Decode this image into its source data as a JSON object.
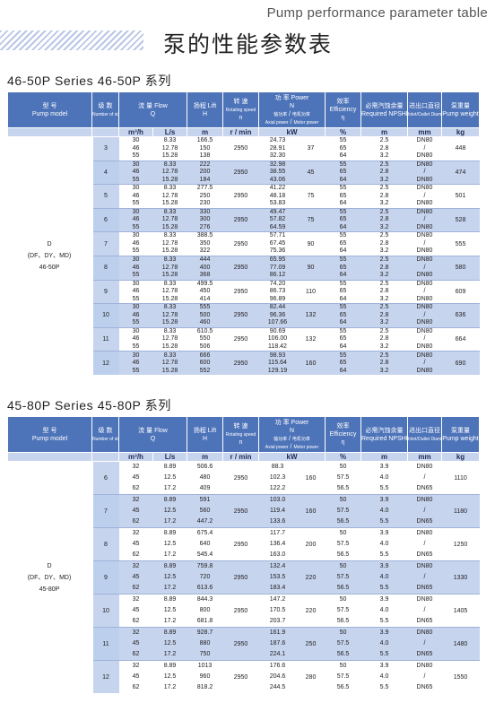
{
  "header": {
    "caption": "Pump performance parameter table",
    "title_cn": "泵的性能参数表"
  },
  "tables": [
    {
      "title": "46-50P Series  46-50P 系列",
      "model_label": [
        "D",
        "(DF、DY、MD)",
        "46-50P"
      ],
      "rows": [
        {
          "stages": "3",
          "q_m3h": [
            "30",
            "46",
            "55"
          ],
          "q_ls": [
            "8.33",
            "12.78",
            "15.28"
          ],
          "h": [
            "166.5",
            "150",
            "138"
          ],
          "speed": "2950",
          "shaft": [
            "24.73",
            "28.91",
            "32.30"
          ],
          "motor": "37",
          "eff": [
            "55",
            "65",
            "64"
          ],
          "npshr": [
            "2.5",
            "2.8",
            "3.2"
          ],
          "dia": [
            "DN80",
            "DN80"
          ],
          "weight": "448"
        },
        {
          "stages": "4",
          "q_m3h": [
            "30",
            "46",
            "55"
          ],
          "q_ls": [
            "8.33",
            "12.78",
            "15.28"
          ],
          "h": [
            "222",
            "200",
            "184"
          ],
          "speed": "2950",
          "shaft": [
            "32.98",
            "38.55",
            "43.06"
          ],
          "motor": "45",
          "eff": [
            "55",
            "65",
            "64"
          ],
          "npshr": [
            "2.5",
            "2.8",
            "3.2"
          ],
          "dia": [
            "DN80",
            "DN80"
          ],
          "weight": "474"
        },
        {
          "stages": "5",
          "q_m3h": [
            "30",
            "46",
            "55"
          ],
          "q_ls": [
            "8.33",
            "12.78",
            "15.28"
          ],
          "h": [
            "277.5",
            "250",
            "230"
          ],
          "speed": "2950",
          "shaft": [
            "41.22",
            "48.18",
            "53.83"
          ],
          "motor": "75",
          "eff": [
            "55",
            "65",
            "64"
          ],
          "npshr": [
            "2.5",
            "2.8",
            "3.2"
          ],
          "dia": [
            "DN80",
            "DN80"
          ],
          "weight": "501"
        },
        {
          "stages": "6",
          "q_m3h": [
            "30",
            "46",
            "55"
          ],
          "q_ls": [
            "8.33",
            "12.78",
            "15.28"
          ],
          "h": [
            "330",
            "300",
            "276"
          ],
          "speed": "2950",
          "shaft": [
            "49.47",
            "57.82",
            "64.59"
          ],
          "motor": "75",
          "eff": [
            "55",
            "65",
            "64"
          ],
          "npshr": [
            "2.5",
            "2.8",
            "3.2"
          ],
          "dia": [
            "DN80",
            "DN80"
          ],
          "weight": "528"
        },
        {
          "stages": "7",
          "q_m3h": [
            "30",
            "46",
            "55"
          ],
          "q_ls": [
            "8.33",
            "12.78",
            "15.28"
          ],
          "h": [
            "388.5",
            "350",
            "322"
          ],
          "speed": "2950",
          "shaft": [
            "57.71",
            "67.45",
            "75.36"
          ],
          "motor": "90",
          "eff": [
            "55",
            "65",
            "64"
          ],
          "npshr": [
            "2.5",
            "2.8",
            "3.2"
          ],
          "dia": [
            "DN80",
            "DN80"
          ],
          "weight": "555"
        },
        {
          "stages": "8",
          "q_m3h": [
            "30",
            "46",
            "55"
          ],
          "q_ls": [
            "8.33",
            "12.78",
            "15.28"
          ],
          "h": [
            "444",
            "400",
            "368"
          ],
          "speed": "2950",
          "shaft": [
            "65.95",
            "77.09",
            "86.12"
          ],
          "motor": "90",
          "eff": [
            "55",
            "65",
            "64"
          ],
          "npshr": [
            "2.5",
            "2.8",
            "3.2"
          ],
          "dia": [
            "DN80",
            "DN80"
          ],
          "weight": "580"
        },
        {
          "stages": "9",
          "q_m3h": [
            "30",
            "46",
            "55"
          ],
          "q_ls": [
            "8.33",
            "12.78",
            "15.28"
          ],
          "h": [
            "499.5",
            "450",
            "414"
          ],
          "speed": "2950",
          "shaft": [
            "74.20",
            "86.73",
            "96.89"
          ],
          "motor": "110",
          "eff": [
            "55",
            "65",
            "64"
          ],
          "npshr": [
            "2.5",
            "2.8",
            "3.2"
          ],
          "dia": [
            "DN80",
            "DN80"
          ],
          "weight": "609"
        },
        {
          "stages": "10",
          "q_m3h": [
            "30",
            "46",
            "55"
          ],
          "q_ls": [
            "8.33",
            "12.78",
            "15.28"
          ],
          "h": [
            "555",
            "500",
            "460"
          ],
          "speed": "2950",
          "shaft": [
            "82.44",
            "96.36",
            "107.66"
          ],
          "motor": "132",
          "eff": [
            "55",
            "65",
            "64"
          ],
          "npshr": [
            "2.5",
            "2.8",
            "3.2"
          ],
          "dia": [
            "DN80",
            "DN80"
          ],
          "weight": "636"
        },
        {
          "stages": "11",
          "q_m3h": [
            "30",
            "46",
            "55"
          ],
          "q_ls": [
            "8.33",
            "12.78",
            "15.28"
          ],
          "h": [
            "610.5",
            "550",
            "506"
          ],
          "speed": "2950",
          "shaft": [
            "90.69",
            "106.00",
            "118.42"
          ],
          "motor": "132",
          "eff": [
            "55",
            "65",
            "64"
          ],
          "npshr": [
            "2.5",
            "2.8",
            "3.2"
          ],
          "dia": [
            "DN80",
            "DN80"
          ],
          "weight": "664"
        },
        {
          "stages": "12",
          "q_m3h": [
            "30",
            "46",
            "55"
          ],
          "q_ls": [
            "8.33",
            "12.78",
            "15.28"
          ],
          "h": [
            "666",
            "600",
            "552"
          ],
          "speed": "2950",
          "shaft": [
            "98.93",
            "115.64",
            "129.19"
          ],
          "motor": "160",
          "eff": [
            "55",
            "65",
            "64"
          ],
          "npshr": [
            "2.5",
            "2.8",
            "3.2"
          ],
          "dia": [
            "DN80",
            "DN80"
          ],
          "weight": "690"
        }
      ]
    },
    {
      "title": "45-80P Series  45-80P 系列",
      "model_label": [
        "D",
        "(DF、DY、MD)",
        "45-80P"
      ],
      "rows": [
        {
          "stages": "6",
          "q_m3h": [
            "32",
            "45",
            "62"
          ],
          "q_ls": [
            "8.89",
            "12.5",
            "17.2"
          ],
          "h": [
            "506.6",
            "480",
            "409"
          ],
          "speed": "2950",
          "shaft": [
            "88.3",
            "102.3",
            "122.2"
          ],
          "motor": "160",
          "eff": [
            "50",
            "57.5",
            "56.5"
          ],
          "npshr": [
            "3.9",
            "4.0",
            "5.5"
          ],
          "dia": [
            "DN80",
            "DN65"
          ],
          "weight": "1110"
        },
        {
          "stages": "7",
          "q_m3h": [
            "32",
            "45",
            "62"
          ],
          "q_ls": [
            "8.89",
            "12.5",
            "17.2"
          ],
          "h": [
            "591",
            "560",
            "447.2"
          ],
          "speed": "2950",
          "shaft": [
            "103.0",
            "119.4",
            "133.6"
          ],
          "motor": "160",
          "eff": [
            "50",
            "57.5",
            "56.5"
          ],
          "npshr": [
            "3.9",
            "4.0",
            "5.5"
          ],
          "dia": [
            "DN80",
            "DN65"
          ],
          "weight": "1180"
        },
        {
          "stages": "8",
          "q_m3h": [
            "32",
            "45",
            "62"
          ],
          "q_ls": [
            "8.89",
            "12.5",
            "17.2"
          ],
          "h": [
            "675.4",
            "640",
            "545.4"
          ],
          "speed": "2950",
          "shaft": [
            "117.7",
            "136.4",
            "163.0"
          ],
          "motor": "200",
          "eff": [
            "50",
            "57.5",
            "56.5"
          ],
          "npshr": [
            "3.9",
            "4.0",
            "5.5"
          ],
          "dia": [
            "DN80",
            "DN65"
          ],
          "weight": "1250"
        },
        {
          "stages": "9",
          "q_m3h": [
            "32",
            "45",
            "62"
          ],
          "q_ls": [
            "8.89",
            "12.5",
            "17.2"
          ],
          "h": [
            "759.8",
            "720",
            "613.6"
          ],
          "speed": "2950",
          "shaft": [
            "132.4",
            "153.5",
            "183.4"
          ],
          "motor": "220",
          "eff": [
            "50",
            "57.5",
            "56.5"
          ],
          "npshr": [
            "3.9",
            "4.0",
            "5.5"
          ],
          "dia": [
            "DN80",
            "DN65"
          ],
          "weight": "1330"
        },
        {
          "stages": "10",
          "q_m3h": [
            "32",
            "45",
            "62"
          ],
          "q_ls": [
            "8.89",
            "12.5",
            "17.2"
          ],
          "h": [
            "844.3",
            "800",
            "681.8"
          ],
          "speed": "2950",
          "shaft": [
            "147.2",
            "170.5",
            "203.7"
          ],
          "motor": "220",
          "eff": [
            "50",
            "57.5",
            "56.5"
          ],
          "npshr": [
            "3.9",
            "4.0",
            "5.5"
          ],
          "dia": [
            "DN80",
            "DN65"
          ],
          "weight": "1405"
        },
        {
          "stages": "11",
          "q_m3h": [
            "32",
            "45",
            "62"
          ],
          "q_ls": [
            "8.89",
            "12.5",
            "17.2"
          ],
          "h": [
            "928.7",
            "880",
            "750"
          ],
          "speed": "2950",
          "shaft": [
            "161.9",
            "187.6",
            "224.1"
          ],
          "motor": "250",
          "eff": [
            "50",
            "57.5",
            "56.5"
          ],
          "npshr": [
            "3.9",
            "4.0",
            "5.5"
          ],
          "dia": [
            "DN80",
            "DN65"
          ],
          "weight": "1480"
        },
        {
          "stages": "12",
          "q_m3h": [
            "32",
            "45",
            "62"
          ],
          "q_ls": [
            "8.89",
            "12.5",
            "17.2"
          ],
          "h": [
            "1013",
            "960",
            "818.2"
          ],
          "speed": "2950",
          "shaft": [
            "176.6",
            "204.6",
            "244.5"
          ],
          "motor": "280",
          "eff": [
            "50",
            "57.5",
            "56.5"
          ],
          "npshr": [
            "3.9",
            "4.0",
            "5.5"
          ],
          "dia": [
            "DN80",
            "DN65"
          ],
          "weight": "1550"
        }
      ]
    }
  ],
  "columns": {
    "model": {
      "cn": "型 号",
      "en": "Pump model"
    },
    "stages": {
      "cn": "级 数",
      "en": "Number of stages"
    },
    "flow": {
      "cn": "流 量",
      "en": "Flow",
      "sym": "Q",
      "unit1": "m³/h",
      "unit2": "L/s"
    },
    "head": {
      "cn": "扬程",
      "en": "Lift",
      "sym": "H",
      "unit": "m"
    },
    "speed": {
      "cn": "转 速",
      "en": "Rotating speed",
      "sym": "n",
      "unit": "r / min"
    },
    "power": {
      "cn": "功 率",
      "en": "Power",
      "sym": "N",
      "shaft_cn": "轴功率",
      "shaft_en": "Axial power",
      "motor_cn": "电机功率",
      "motor_en": "Motor power",
      "unit": "kW"
    },
    "eff": {
      "cn": "效率",
      "en": "Efficiency",
      "sym": "η",
      "unit": "%"
    },
    "npshr": {
      "cn": "必需汽蚀余量",
      "en": "Required NPSHR",
      "unit": "m"
    },
    "dia": {
      "cn": "进出口直径",
      "en": "Inlet/Outlet Diameter",
      "unit": "mm"
    },
    "weight": {
      "cn": "泵重量",
      "en": "Pump weight",
      "unit": "kg"
    }
  }
}
